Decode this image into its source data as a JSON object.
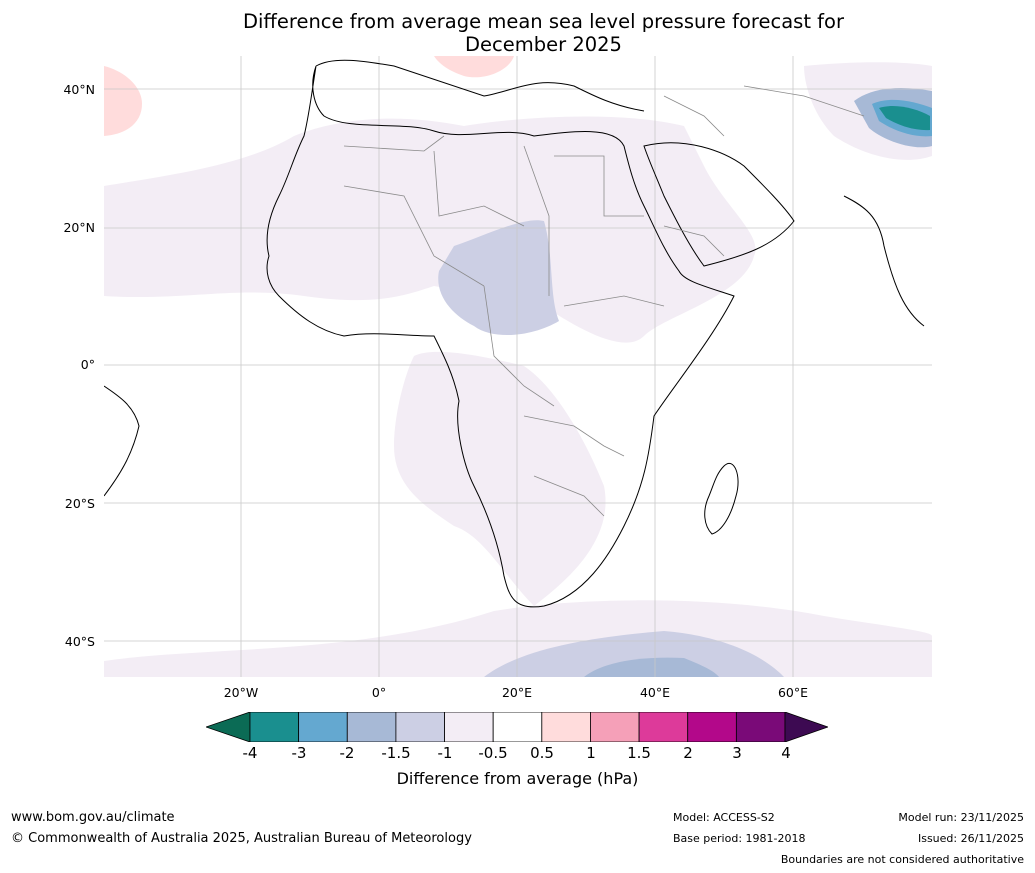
{
  "title": {
    "line1": "Difference from average mean sea level pressure forecast for",
    "line2": "December 2025"
  },
  "axes": {
    "lat_labels": [
      "40°N",
      "20°N",
      "0°",
      "20°S",
      "40°S"
    ],
    "lon_labels": [
      "20°W",
      "0°",
      "20°E",
      "40°E",
      "60°E"
    ]
  },
  "colorbar": {
    "tick_labels": [
      "-4",
      "-3",
      "-2",
      "-1.5",
      "-1",
      "-0.5",
      "0.5",
      "1",
      "1.5",
      "2",
      "3",
      "4"
    ],
    "colors": [
      "#1a8f8f",
      "#64a8d0",
      "#a7b9d6",
      "#cccfe4",
      "#f3edf5",
      "#ffffff",
      "#ffdcdc",
      "#f5a0b8",
      "#dd3a9a",
      "#b3088a",
      "#7a0a78"
    ],
    "low_extend_color": "#0b6b55",
    "high_extend_color": "#3d0a52",
    "title": "Difference from average (hPa)"
  },
  "footer": {
    "website": "www.bom.gov.au/climate",
    "copyright": "© Commonwealth of Australia 2025, Australian Bureau of Meteorology",
    "model": "Model: ACCESS-S2",
    "base_period": "Base period: 1981-2018",
    "model_run": "Model run: 23/11/2025",
    "issued": "Issued: 26/11/2025",
    "disclaimer": "Boundaries are not considered authoritative"
  }
}
